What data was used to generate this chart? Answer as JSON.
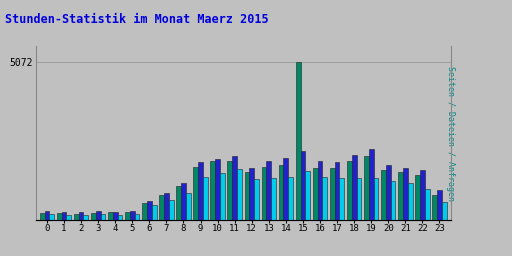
{
  "title": "Stunden-Statistik im Monat Maerz 2015",
  "title_color": "#0000dd",
  "ylabel_right": "Seiten / Dateien / Anfragen",
  "ylabel_right_color": "#008888",
  "background_color": "#c0c0c0",
  "plot_bg_color": "#c0c0c0",
  "bar_width": 0.28,
  "ymax": 5600,
  "ytick_val": 5072,
  "grid_color": "#999999",
  "seiten_color": "#008866",
  "dateien_color": "#2222cc",
  "anfragen_color": "#00ccee",
  "seiten": [
    230,
    220,
    210,
    230,
    255,
    275,
    560,
    820,
    1100,
    1700,
    1900,
    1900,
    1560,
    1700,
    1780,
    5072,
    1680,
    1670,
    1900,
    2050,
    1620,
    1550,
    1450,
    820
  ],
  "dateien": [
    280,
    270,
    255,
    280,
    270,
    295,
    620,
    880,
    1200,
    1880,
    1980,
    2080,
    1680,
    1890,
    2000,
    2220,
    1890,
    1880,
    2100,
    2300,
    1790,
    1670,
    1600,
    960
  ],
  "anfragen": [
    190,
    180,
    165,
    185,
    175,
    210,
    490,
    660,
    870,
    1380,
    1530,
    1640,
    1320,
    1360,
    1390,
    1590,
    1390,
    1360,
    1360,
    1360,
    1250,
    1190,
    1010,
    580
  ]
}
